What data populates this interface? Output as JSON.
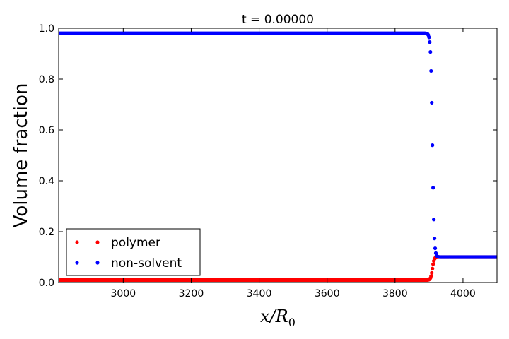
{
  "chart_data": {
    "type": "scatter",
    "title": "t = 0.00000",
    "ylabel": "Volume fraction",
    "xlabel": "x/R",
    "xlabel_subscript": "0",
    "xlim": [
      2810,
      4100
    ],
    "ylim": [
      0.0,
      1.0
    ],
    "x_ticks": [
      3000,
      3200,
      3400,
      3600,
      3800,
      4000
    ],
    "y_ticks": [
      0.0,
      0.2,
      0.4,
      0.6,
      0.8,
      1.0
    ],
    "x_tick_labels": [
      "3000",
      "3200",
      "3400",
      "3600",
      "3800",
      "4000"
    ],
    "y_tick_labels": [
      "0.0",
      "0.2",
      "0.4",
      "0.6",
      "0.8",
      "1.0"
    ],
    "grid": false,
    "legend_position": "lower-left",
    "series": [
      {
        "name": "polymer",
        "color": "#ff0000",
        "profile": {
          "left_value": 0.01,
          "right_value": 0.1,
          "interface_x": 3910,
          "width": 5,
          "x_start": 2810,
          "x_end": 4100,
          "step": 2
        }
      },
      {
        "name": "non-solvent",
        "color": "#0000ff",
        "profile": {
          "left_value": 0.98,
          "right_value": 0.1,
          "interface_x": 3910,
          "width": 5,
          "x_start": 2810,
          "x_end": 4100,
          "step": 2
        }
      }
    ]
  }
}
